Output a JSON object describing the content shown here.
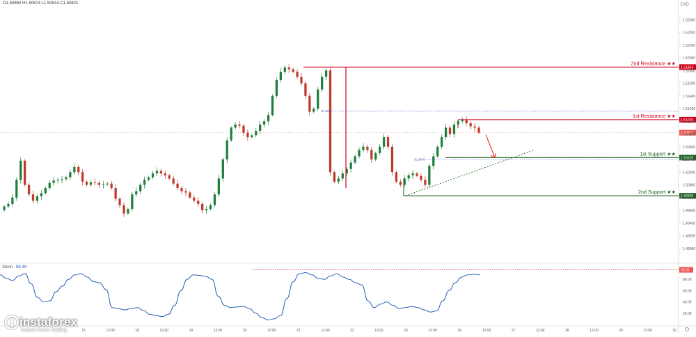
{
  "header": {
    "ohlc_text": "O1.50860 H1.50874 L1.50814 C1.50821",
    "pair": "CAD"
  },
  "stoch": {
    "label": "Stoch",
    "value": "88.49"
  },
  "logo": {
    "brand": "instaforex",
    "tagline": "Instant Forex Trading"
  },
  "colors": {
    "bull": "#26a69a",
    "bear": "#d4403a",
    "resistance": "#d0021b",
    "support": "#1b5e20",
    "stoch_line": "#2a62b8",
    "price_badge": "#ef5350"
  },
  "chart_data": [
    {
      "type": "candlestick",
      "ylim": [
        1.488,
        1.528
      ],
      "y_ticks": [
        "1.52600",
        "1.52400",
        "1.52200",
        "1.52000",
        "1.51800",
        "1.51600",
        "1.51400",
        "1.51200",
        "1.51000",
        "1.50800",
        "1.50600",
        "1.50400",
        "1.50200",
        "1.50000",
        "1.49800",
        "1.49600",
        "1.49400",
        "1.49200",
        "1.49000"
      ],
      "x_ticks": [
        "15",
        "12:00",
        "16",
        "12:00",
        "19",
        "12:00",
        "20",
        "12:00",
        "21",
        "12:00",
        "22",
        "12:00",
        "23",
        "12:00",
        "26",
        "12:00",
        "27",
        "12:00",
        "28",
        "12:00",
        "29",
        "12:00",
        "30"
      ],
      "current_price": "1.50821",
      "levels": [
        {
          "label": "2nd Resistance ★★",
          "value": 1.51854,
          "badge": "1.51854",
          "kind": "resistance"
        },
        {
          "label": "1st Resistance ★★",
          "value": 1.51026,
          "badge": "1.51026",
          "kind": "resistance"
        },
        {
          "label": "1st Support ★★",
          "value": 1.50429,
          "badge": "1.50429",
          "kind": "support"
        },
        {
          "label": "2nd Support ★★",
          "value": 1.49828,
          "badge": "1.49828",
          "kind": "support"
        }
      ],
      "fibonacci": [
        {
          "label": "61.80%",
          "value": 1.5116
        },
        {
          "label": "61.80%",
          "value": 1.504
        }
      ],
      "trendline": {
        "from": [
          1.4983
        ],
        "to": [
          1.5055
        ],
        "style": "dotted"
      },
      "projection": {
        "from": 1.5079,
        "to": 1.5043
      },
      "closes": [
        1.4966,
        1.497,
        1.498,
        1.5008,
        1.5038,
        1.5,
        1.4985,
        1.4975,
        1.4982,
        1.4987,
        1.4995,
        1.5003,
        1.5007,
        1.5008,
        1.5009,
        1.5012,
        1.502,
        1.5028,
        1.502,
        1.5005,
        1.5,
        1.5004,
        1.5003,
        1.5,
        1.5001,
        1.5002,
        1.4995,
        1.4978,
        1.4968,
        1.4955,
        1.4962,
        1.4985,
        1.499,
        1.5,
        1.5008,
        1.5012,
        1.5018,
        1.5022,
        1.5018,
        1.5015,
        1.501,
        1.5002,
        1.4995,
        1.499,
        1.4988,
        1.498,
        1.4975,
        1.497,
        1.496,
        1.4962,
        1.4968,
        1.4985,
        1.501,
        1.504,
        1.507,
        1.509,
        1.5095,
        1.5093,
        1.5082,
        1.5075,
        1.5078,
        1.5085,
        1.5095,
        1.51,
        1.511,
        1.514,
        1.5165,
        1.5178,
        1.5185,
        1.5182,
        1.5178,
        1.517,
        1.516,
        1.514,
        1.5115,
        1.512,
        1.515,
        1.517,
        1.518,
        1.502,
        1.5005,
        1.501,
        1.5018,
        1.5025,
        1.5035,
        1.5045,
        1.5055,
        1.506,
        1.5055,
        1.504,
        1.505,
        1.506,
        1.5075,
        1.506,
        1.502,
        1.5005,
        1.5,
        1.501,
        1.5015,
        1.5018,
        1.5014,
        1.5008,
        1.5,
        1.503,
        1.5045,
        1.506,
        1.5075,
        1.509,
        1.508,
        1.5095,
        1.51,
        1.5102,
        1.5097,
        1.5092,
        1.509,
        1.5082
      ],
      "stoch_k": [
        88,
        82,
        78,
        86,
        90,
        72,
        48,
        40,
        42,
        58,
        68,
        80,
        88,
        90,
        84,
        76,
        74,
        62,
        30,
        28,
        26,
        28,
        30,
        25,
        18,
        16,
        14,
        18,
        34,
        60,
        80,
        88,
        87,
        85,
        80,
        50,
        34,
        30,
        31,
        32,
        28,
        20,
        12,
        8,
        10,
        16,
        46,
        76,
        90,
        92,
        88,
        82,
        80,
        86,
        90,
        84,
        80,
        74,
        70,
        42,
        30,
        36,
        40,
        34,
        28,
        30,
        32,
        30,
        26,
        22,
        24,
        42,
        60,
        74,
        84,
        88,
        89,
        88
      ],
      "stoch_refline": "96.83"
    }
  ]
}
